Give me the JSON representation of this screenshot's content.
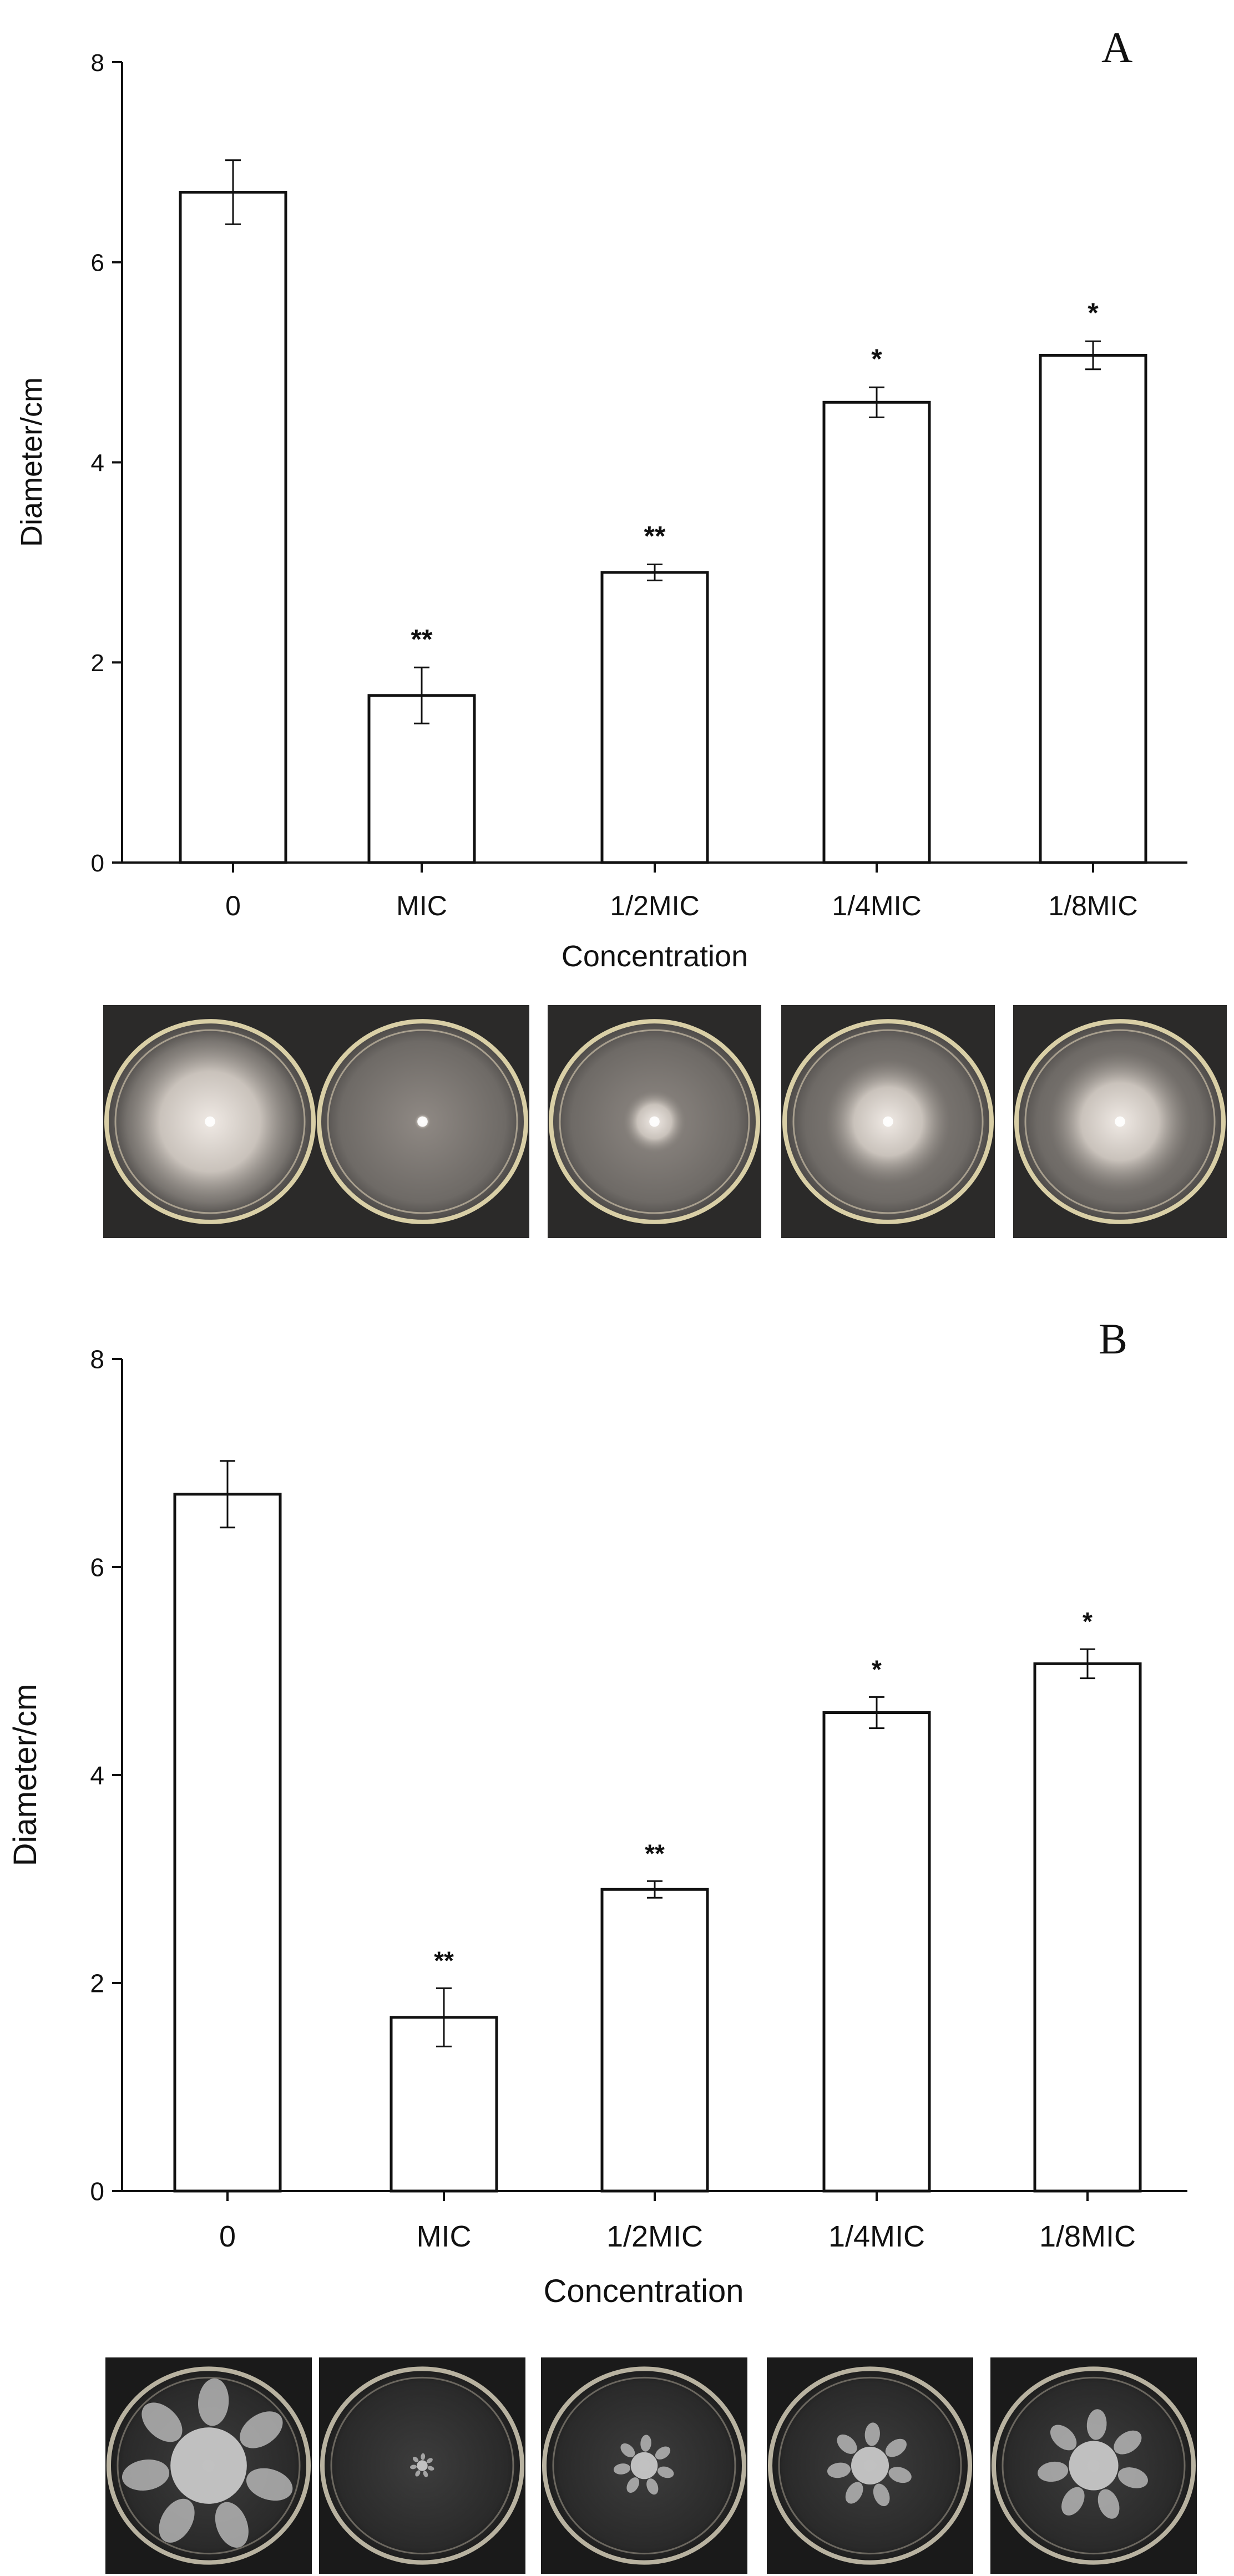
{
  "chart_data": [
    {
      "panel": "A",
      "type": "bar",
      "categories": [
        "0",
        "MIC",
        "1/2MIC",
        "1/4MIC",
        "1/8MIC"
      ],
      "values": [
        6.7,
        1.67,
        2.9,
        4.6,
        5.07
      ],
      "errors": [
        0.32,
        0.28,
        0.08,
        0.15,
        0.14
      ],
      "significance": [
        "",
        "**",
        "**",
        "*",
        "*"
      ],
      "xlabel": "Concentration",
      "ylabel": "Diameter/cm",
      "ylim": [
        0,
        8
      ],
      "yticks": [
        0,
        2,
        4,
        6,
        8
      ],
      "grid": false,
      "photo_style": "haze",
      "photo_sizes": [
        0.88,
        0.08,
        0.3,
        0.6,
        0.68
      ]
    },
    {
      "panel": "B",
      "type": "bar",
      "categories": [
        "0",
        "MIC",
        "1/2MIC",
        "1/4MIC",
        "1/8MIC"
      ],
      "values": [
        6.7,
        1.67,
        2.9,
        4.6,
        5.07
      ],
      "errors": [
        0.32,
        0.28,
        0.08,
        0.15,
        0.14
      ],
      "significance": [
        "",
        "**",
        "**",
        "*",
        "*"
      ],
      "xlabel": "Concentration",
      "ylabel": "Diameter/cm",
      "ylim": [
        0,
        8
      ],
      "yticks": [
        0,
        2,
        4,
        6,
        8
      ],
      "grid": false,
      "photo_style": "colony",
      "photo_sizes": [
        0.85,
        0.12,
        0.3,
        0.42,
        0.55
      ]
    }
  ]
}
